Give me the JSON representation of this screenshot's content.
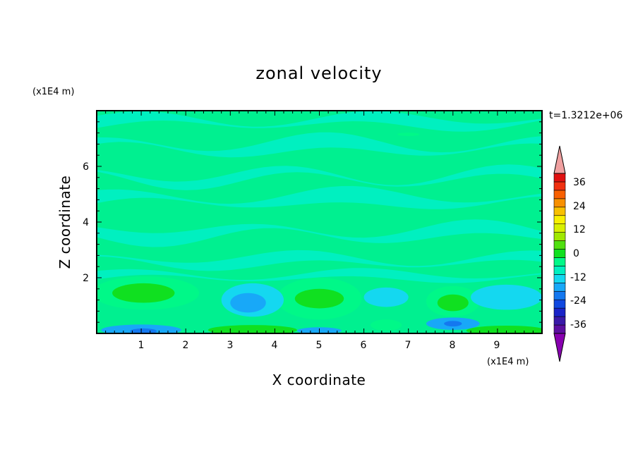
{
  "chart_data": {
    "type": "heatmap",
    "title": "zonal velocity",
    "xlabel": "X coordinate",
    "ylabel": "Z coordinate",
    "x_unit": "(x1E4 m)",
    "y_unit": "(x1E4 m)",
    "time_label": "t=1.3212e+06",
    "xlim": [
      0,
      10
    ],
    "ylim": [
      0,
      8
    ],
    "x_ticks": [
      "1",
      "2",
      "3",
      "4",
      "5",
      "6",
      "7",
      "8",
      "9"
    ],
    "y_ticks": [
      "2",
      "4",
      "6"
    ],
    "colorbar": {
      "ticks": [
        "36",
        "24",
        "12",
        "0",
        "-12",
        "-24",
        "-36"
      ],
      "tick_values": [
        36,
        24,
        12,
        0,
        -12,
        -24,
        -36
      ],
      "range": [
        -42,
        42
      ],
      "step": 6,
      "colors": [
        "#5c0fa0",
        "#3a1aa8",
        "#1a24c8",
        "#1048e0",
        "#1478f0",
        "#18a8f8",
        "#14d8f0",
        "#00f0c0",
        "#00f888",
        "#10e020",
        "#50e010",
        "#a0e800",
        "#d8f000",
        "#f8f000",
        "#f8c000",
        "#f89000",
        "#f86000",
        "#f03010",
        "#e01010",
        "#f0a0a0"
      ],
      "under_color": "#8800b0",
      "over_color": "#f0a0a0"
    },
    "background_color": "#00f090",
    "features": [
      {
        "kind": "band",
        "x_start": 0,
        "x_end": 10,
        "z_center": 7.6,
        "z_half": 0.22,
        "value": 3,
        "amplitude": 0.2,
        "phase": 0.0
      },
      {
        "kind": "band",
        "x_start": 0,
        "x_end": 10,
        "z_center": 6.7,
        "z_half": 0.28,
        "value": 3,
        "amplitude": 0.25,
        "phase": 1.1
      },
      {
        "kind": "band",
        "x_start": 0,
        "x_end": 10,
        "z_center": 5.6,
        "z_half": 0.18,
        "value": 3,
        "amplitude": 0.3,
        "phase": 2.2
      },
      {
        "kind": "band",
        "x_start": 0,
        "x_end": 10,
        "z_center": 4.8,
        "z_half": 0.3,
        "value": 3,
        "amplitude": 0.2,
        "phase": 0.6
      },
      {
        "kind": "band",
        "x_start": 0,
        "x_end": 10,
        "z_center": 3.6,
        "z_half": 0.25,
        "value": 3,
        "amplitude": 0.25,
        "phase": 3.0
      },
      {
        "kind": "band",
        "x_start": 0,
        "x_end": 10,
        "z_center": 2.6,
        "z_half": 0.22,
        "value": 3,
        "amplitude": 0.2,
        "phase": 1.7
      },
      {
        "kind": "band",
        "x_start": 0,
        "x_end": 10,
        "z_center": 2.05,
        "z_half": 0.16,
        "value": 3,
        "amplitude": 0.15,
        "phase": 0.3
      },
      {
        "kind": "blob",
        "x": 7.0,
        "z": 7.15,
        "rx": 0.25,
        "rz": 0.06,
        "value": 9
      },
      {
        "kind": "blob",
        "x": 1.1,
        "z": 1.45,
        "rx": 1.2,
        "rz": 0.6,
        "value": 6
      },
      {
        "kind": "blob",
        "x": 1.05,
        "z": 1.45,
        "rx": 0.7,
        "rz": 0.35,
        "value": 12
      },
      {
        "kind": "blob",
        "x": 1.05,
        "z": 1.45,
        "rx": 0.35,
        "rz": 0.18,
        "value": 15
      },
      {
        "kind": "blob",
        "x": 5.0,
        "z": 1.25,
        "rx": 0.95,
        "rz": 0.75,
        "value": 6
      },
      {
        "kind": "blob",
        "x": 5.0,
        "z": 1.25,
        "rx": 0.55,
        "rz": 0.35,
        "value": 12
      },
      {
        "kind": "blob",
        "x": 8.0,
        "z": 1.15,
        "rx": 0.6,
        "rz": 0.55,
        "value": 6
      },
      {
        "kind": "blob",
        "x": 8.0,
        "z": 1.1,
        "rx": 0.35,
        "rz": 0.3,
        "value": 12
      },
      {
        "kind": "blob",
        "x": 8.0,
        "z": 1.05,
        "rx": 0.15,
        "rz": 0.12,
        "value": 15
      },
      {
        "kind": "blob",
        "x": 3.5,
        "z": 1.2,
        "rx": 0.7,
        "rz": 0.6,
        "value": -6
      },
      {
        "kind": "blob",
        "x": 3.4,
        "z": 1.1,
        "rx": 0.4,
        "rz": 0.35,
        "value": -9
      },
      {
        "kind": "blob",
        "x": 6.5,
        "z": 1.3,
        "rx": 0.5,
        "rz": 0.35,
        "value": -6
      },
      {
        "kind": "blob",
        "x": 9.2,
        "z": 1.3,
        "rx": 0.8,
        "rz": 0.45,
        "value": -3
      },
      {
        "kind": "blob",
        "x": 8.0,
        "z": 0.35,
        "rx": 0.6,
        "rz": 0.22,
        "value": -9
      },
      {
        "kind": "blob",
        "x": 8.0,
        "z": 0.35,
        "rx": 0.2,
        "rz": 0.1,
        "value": -18
      },
      {
        "kind": "blob",
        "x": 1.0,
        "z": 0.12,
        "rx": 0.9,
        "rz": 0.2,
        "value": -9
      },
      {
        "kind": "blob",
        "x": 1.05,
        "z": 0.08,
        "rx": 0.3,
        "rz": 0.1,
        "value": -18
      },
      {
        "kind": "blob",
        "x": 5.0,
        "z": 0.1,
        "rx": 0.5,
        "rz": 0.12,
        "value": -9
      },
      {
        "kind": "blob",
        "x": 3.5,
        "z": 0.12,
        "rx": 1.0,
        "rz": 0.18,
        "value": 12
      },
      {
        "kind": "blob",
        "x": 3.5,
        "z": 0.06,
        "rx": 0.6,
        "rz": 0.1,
        "value": 15
      },
      {
        "kind": "blob",
        "x": 9.2,
        "z": 0.1,
        "rx": 0.9,
        "rz": 0.18,
        "value": 12
      },
      {
        "kind": "blob",
        "x": 6.5,
        "z": 0.3,
        "rx": 0.35,
        "rz": 0.2,
        "value": 6
      }
    ]
  }
}
